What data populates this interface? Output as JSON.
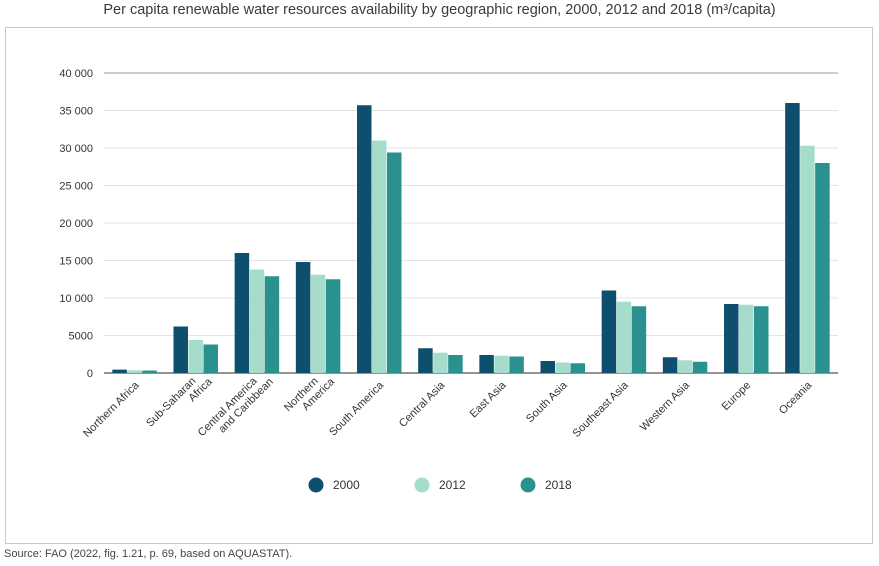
{
  "chart_data": {
    "type": "bar",
    "title": "Per capita renewable water resources availability by geographic region, 2000, 2012 and 2018 (m³/capita)",
    "xlabel": "",
    "ylabel": "",
    "ylim": [
      0,
      40000
    ],
    "yticks": [
      "0",
      "5000",
      "10 000",
      "15 000",
      "20 000",
      "25 000",
      "30 000",
      "35 000",
      "40 000"
    ],
    "ytick_values": [
      0,
      5000,
      10000,
      15000,
      20000,
      25000,
      30000,
      35000,
      40000
    ],
    "categories": [
      [
        "Northern Africa"
      ],
      [
        "Sub-Saharan",
        "Africa"
      ],
      [
        "Central America",
        "and Caribbean"
      ],
      [
        "Northern",
        "America"
      ],
      [
        "South America"
      ],
      [
        "Central Asia"
      ],
      [
        "East Asia"
      ],
      [
        "South Asia"
      ],
      [
        "Southeast Asia"
      ],
      [
        "Western Asia"
      ],
      [
        "Europe"
      ],
      [
        "Oceania"
      ]
    ],
    "series": [
      {
        "name": "2000",
        "color": "#0e4f6e",
        "values": [
          450,
          6200,
          16000,
          14800,
          35700,
          3300,
          2400,
          1600,
          11000,
          2100,
          9200,
          36000
        ]
      },
      {
        "name": "2012",
        "color": "#a5dccb",
        "values": [
          350,
          4400,
          13800,
          13100,
          31000,
          2700,
          2300,
          1400,
          9500,
          1700,
          9100,
          30300
        ]
      },
      {
        "name": "2018",
        "color": "#2a918e",
        "values": [
          330,
          3800,
          12900,
          12500,
          29400,
          2400,
          2200,
          1300,
          8900,
          1500,
          8900,
          28000
        ]
      }
    ],
    "legend_position": "bottom-center"
  },
  "source": "Source: FAO (2022, fig. 1.21, p. 69, based on AQUASTAT)."
}
